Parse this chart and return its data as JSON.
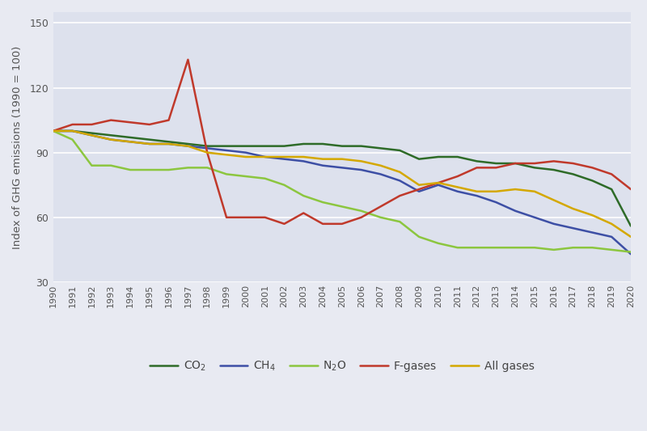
{
  "years": [
    1990,
    1991,
    1992,
    1993,
    1994,
    1995,
    1996,
    1997,
    1998,
    1999,
    2000,
    2001,
    2002,
    2003,
    2004,
    2005,
    2006,
    2007,
    2008,
    2009,
    2010,
    2011,
    2012,
    2013,
    2014,
    2015,
    2016,
    2017,
    2018,
    2019,
    2020
  ],
  "CO2": [
    100,
    100,
    99,
    98,
    97,
    96,
    95,
    94,
    93,
    93,
    93,
    93,
    93,
    94,
    94,
    93,
    93,
    92,
    91,
    87,
    88,
    88,
    86,
    85,
    85,
    83,
    82,
    80,
    77,
    73,
    56
  ],
  "CH4": [
    100,
    100,
    98,
    96,
    95,
    94,
    94,
    93,
    92,
    91,
    90,
    88,
    87,
    86,
    84,
    83,
    82,
    80,
    77,
    72,
    75,
    72,
    70,
    67,
    63,
    60,
    57,
    55,
    53,
    51,
    43
  ],
  "N2O": [
    100,
    96,
    84,
    84,
    82,
    82,
    82,
    83,
    83,
    80,
    79,
    78,
    75,
    70,
    67,
    65,
    63,
    60,
    58,
    51,
    48,
    46,
    46,
    46,
    46,
    46,
    45,
    46,
    46,
    45,
    44
  ],
  "Fgases": [
    100,
    103,
    103,
    105,
    104,
    103,
    105,
    133,
    90,
    60,
    60,
    60,
    57,
    62,
    57,
    57,
    60,
    65,
    70,
    73,
    76,
    79,
    83,
    83,
    85,
    85,
    86,
    85,
    83,
    80,
    73
  ],
  "AllGases": [
    100,
    100,
    98,
    96,
    95,
    94,
    94,
    93,
    90,
    89,
    88,
    88,
    88,
    88,
    87,
    87,
    86,
    84,
    81,
    75,
    76,
    74,
    72,
    72,
    73,
    72,
    68,
    64,
    61,
    57,
    51
  ],
  "colors": {
    "CO2": "#2e6b28",
    "CH4": "#3d4fa5",
    "N2O": "#8cc63f",
    "Fgases": "#c0392b",
    "AllGases": "#d4a800"
  },
  "ylabel": "Index of GHG emissions (1990 = 100)",
  "ylim": [
    30,
    155
  ],
  "yticks": [
    30,
    60,
    90,
    120,
    150
  ],
  "bg_color": "#e8eaf2",
  "plot_bg_color": "#dde1ed",
  "line_width": 1.8
}
